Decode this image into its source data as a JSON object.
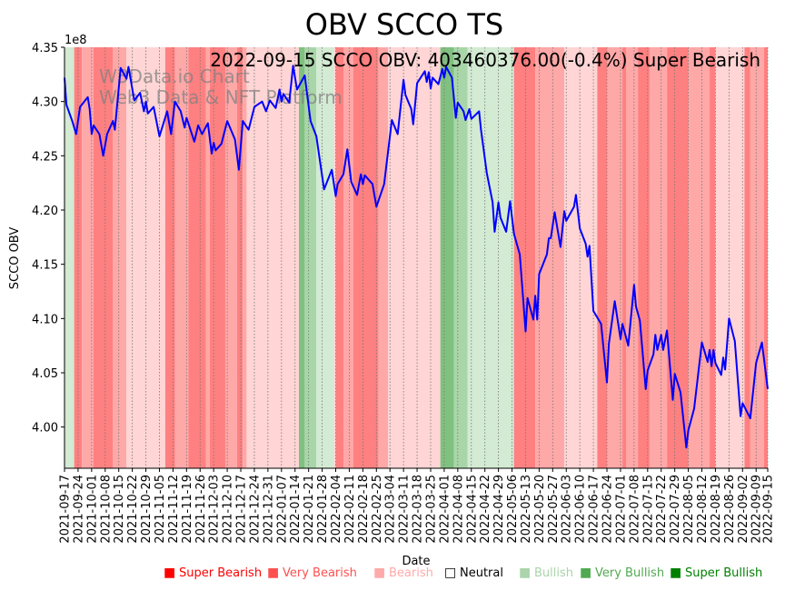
{
  "chart_data": {
    "type": "line",
    "title": "OBV SCCO TS",
    "annotation": "2022-09-15 SCCO OBV: 403460376.00(-0.4%) Super Bearish",
    "watermark": [
      "W3Data.io Chart",
      "Web3 Data & NFT Platform"
    ],
    "xlabel": "Date",
    "ylabel": "SCCO OBV",
    "y_offset_label": "1e8",
    "ylim": [
      3.962,
      4.35
    ],
    "xlim": [
      "2021-09-17",
      "2022-09-15"
    ],
    "yticks": [
      "4.00",
      "4.05",
      "4.10",
      "4.15",
      "4.20",
      "4.25",
      "4.30",
      "4.35"
    ],
    "xticks": [
      "2021-09-17",
      "2021-09-24",
      "2021-10-01",
      "2021-10-08",
      "2021-10-15",
      "2021-10-22",
      "2021-10-29",
      "2021-11-05",
      "2021-11-12",
      "2021-11-19",
      "2021-11-26",
      "2021-12-03",
      "2021-12-10",
      "2021-12-17",
      "2021-12-24",
      "2021-12-31",
      "2022-01-07",
      "2022-01-14",
      "2022-01-21",
      "2022-01-28",
      "2022-02-04",
      "2022-02-11",
      "2022-02-18",
      "2022-02-25",
      "2022-03-04",
      "2022-03-11",
      "2022-03-18",
      "2022-03-25",
      "2022-04-01",
      "2022-04-08",
      "2022-04-15",
      "2022-04-22",
      "2022-04-29",
      "2022-05-06",
      "2022-05-13",
      "2022-05-20",
      "2022-05-27",
      "2022-06-03",
      "2022-06-10",
      "2022-06-17",
      "2022-06-24",
      "2022-07-01",
      "2022-07-08",
      "2022-07-15",
      "2022-07-22",
      "2022-07-29",
      "2022-08-05",
      "2022-08-12",
      "2022-08-19",
      "2022-08-26",
      "2022-09-02",
      "2022-09-09",
      "2022-09-15"
    ],
    "grid": "vertical-dotted",
    "series": [
      {
        "name": "SCCO OBV",
        "color": "#0000ff",
        "points": [
          [
            "2021-09-17",
            4.322
          ],
          [
            "2021-09-18",
            4.297
          ],
          [
            "2021-09-21",
            4.282
          ],
          [
            "2021-09-23",
            4.27
          ],
          [
            "2021-09-25",
            4.295
          ],
          [
            "2021-09-29",
            4.304
          ],
          [
            "2021-09-30",
            4.293
          ],
          [
            "2021-10-01",
            4.27
          ],
          [
            "2021-10-02",
            4.278
          ],
          [
            "2021-10-05",
            4.27
          ],
          [
            "2021-10-07",
            4.25
          ],
          [
            "2021-10-09",
            4.27
          ],
          [
            "2021-10-12",
            4.282
          ],
          [
            "2021-10-13",
            4.274
          ],
          [
            "2021-10-16",
            4.331
          ],
          [
            "2021-10-19",
            4.321
          ],
          [
            "2021-10-20",
            4.332
          ],
          [
            "2021-10-23",
            4.301
          ],
          [
            "2021-10-26",
            4.308
          ],
          [
            "2021-10-28",
            4.291
          ],
          [
            "2021-10-29",
            4.3
          ],
          [
            "2021-10-30",
            4.289
          ],
          [
            "2021-11-02",
            4.295
          ],
          [
            "2021-11-05",
            4.268
          ],
          [
            "2021-11-09",
            4.291
          ],
          [
            "2021-11-11",
            4.27
          ],
          [
            "2021-11-13",
            4.3
          ],
          [
            "2021-11-16",
            4.291
          ],
          [
            "2021-11-18",
            4.276
          ],
          [
            "2021-11-19",
            4.285
          ],
          [
            "2021-11-23",
            4.263
          ],
          [
            "2021-11-25",
            4.278
          ],
          [
            "2021-11-27",
            4.27
          ],
          [
            "2021-11-30",
            4.28
          ],
          [
            "2021-12-02",
            4.252
          ],
          [
            "2021-12-03",
            4.262
          ],
          [
            "2021-12-04",
            4.255
          ],
          [
            "2021-12-07",
            4.261
          ],
          [
            "2021-12-10",
            4.282
          ],
          [
            "2021-12-14",
            4.265
          ],
          [
            "2021-12-16",
            4.237
          ],
          [
            "2021-12-18",
            4.282
          ],
          [
            "2021-12-21",
            4.274
          ],
          [
            "2021-12-24",
            4.295
          ],
          [
            "2021-12-28",
            4.3
          ],
          [
            "2021-12-30",
            4.291
          ],
          [
            "2022-01-01",
            4.301
          ],
          [
            "2022-01-04",
            4.294
          ],
          [
            "2022-01-06",
            4.311
          ],
          [
            "2022-01-07",
            4.3
          ],
          [
            "2022-01-08",
            4.307
          ],
          [
            "2022-01-11",
            4.299
          ],
          [
            "2022-01-13",
            4.333
          ],
          [
            "2022-01-15",
            4.311
          ],
          [
            "2022-01-19",
            4.324
          ],
          [
            "2022-01-22",
            4.282
          ],
          [
            "2022-01-25",
            4.268
          ],
          [
            "2022-01-29",
            4.219
          ],
          [
            "2022-02-02",
            4.237
          ],
          [
            "2022-02-04",
            4.213
          ],
          [
            "2022-02-05",
            4.224
          ],
          [
            "2022-02-08",
            4.233
          ],
          [
            "2022-02-10",
            4.256
          ],
          [
            "2022-02-12",
            4.226
          ],
          [
            "2022-02-15",
            4.214
          ],
          [
            "2022-02-17",
            4.233
          ],
          [
            "2022-02-18",
            4.224
          ],
          [
            "2022-02-19",
            4.232
          ],
          [
            "2022-02-23",
            4.224
          ],
          [
            "2022-02-25",
            4.203
          ],
          [
            "2022-03-01",
            4.224
          ],
          [
            "2022-03-05",
            4.283
          ],
          [
            "2022-03-08",
            4.27
          ],
          [
            "2022-03-11",
            4.32
          ],
          [
            "2022-03-12",
            4.306
          ],
          [
            "2022-03-15",
            4.293
          ],
          [
            "2022-03-16",
            4.279
          ],
          [
            "2022-03-18",
            4.317
          ],
          [
            "2022-03-22",
            4.328
          ],
          [
            "2022-03-23",
            4.318
          ],
          [
            "2022-03-24",
            4.327
          ],
          [
            "2022-03-25",
            4.312
          ],
          [
            "2022-03-26",
            4.322
          ],
          [
            "2022-03-29",
            4.316
          ],
          [
            "2022-03-31",
            4.33
          ],
          [
            "2022-04-01",
            4.322
          ],
          [
            "2022-04-02",
            4.332
          ],
          [
            "2022-04-05",
            4.322
          ],
          [
            "2022-04-07",
            4.285
          ],
          [
            "2022-04-08",
            4.299
          ],
          [
            "2022-04-11",
            4.291
          ],
          [
            "2022-04-12",
            4.283
          ],
          [
            "2022-04-14",
            4.293
          ],
          [
            "2022-04-15",
            4.284
          ],
          [
            "2022-04-19",
            4.291
          ],
          [
            "2022-04-20",
            4.274
          ],
          [
            "2022-04-23",
            4.234
          ],
          [
            "2022-04-26",
            4.207
          ],
          [
            "2022-04-27",
            4.18
          ],
          [
            "2022-04-29",
            4.207
          ],
          [
            "2022-04-30",
            4.193
          ],
          [
            "2022-05-03",
            4.18
          ],
          [
            "2022-05-05",
            4.208
          ],
          [
            "2022-05-07",
            4.178
          ],
          [
            "2022-05-10",
            4.159
          ],
          [
            "2022-05-13",
            4.088
          ],
          [
            "2022-05-14",
            4.119
          ],
          [
            "2022-05-17",
            4.099
          ],
          [
            "2022-05-18",
            4.121
          ],
          [
            "2022-05-19",
            4.099
          ],
          [
            "2022-05-20",
            4.141
          ],
          [
            "2022-05-24",
            4.159
          ],
          [
            "2022-05-25",
            4.174
          ],
          [
            "2022-05-26",
            4.174
          ],
          [
            "2022-05-28",
            4.198
          ],
          [
            "2022-05-31",
            4.166
          ],
          [
            "2022-06-02",
            4.199
          ],
          [
            "2022-06-03",
            4.19
          ],
          [
            "2022-06-07",
            4.203
          ],
          [
            "2022-06-08",
            4.214
          ],
          [
            "2022-06-10",
            4.183
          ],
          [
            "2022-06-13",
            4.169
          ],
          [
            "2022-06-14",
            4.157
          ],
          [
            "2022-06-15",
            4.167
          ],
          [
            "2022-06-17",
            4.107
          ],
          [
            "2022-06-21",
            4.095
          ],
          [
            "2022-06-24",
            4.041
          ],
          [
            "2022-06-25",
            4.077
          ],
          [
            "2022-06-28",
            4.116
          ],
          [
            "2022-07-01",
            4.081
          ],
          [
            "2022-07-02",
            4.095
          ],
          [
            "2022-07-05",
            4.075
          ],
          [
            "2022-07-08",
            4.131
          ],
          [
            "2022-07-09",
            4.111
          ],
          [
            "2022-07-11",
            4.098
          ],
          [
            "2022-07-14",
            4.035
          ],
          [
            "2022-07-15",
            4.052
          ],
          [
            "2022-07-18",
            4.067
          ],
          [
            "2022-07-19",
            4.085
          ],
          [
            "2022-07-20",
            4.071
          ],
          [
            "2022-07-22",
            4.085
          ],
          [
            "2022-07-23",
            4.071
          ],
          [
            "2022-07-25",
            4.089
          ],
          [
            "2022-07-28",
            4.025
          ],
          [
            "2022-07-29",
            4.049
          ],
          [
            "2022-08-01",
            4.032
          ],
          [
            "2022-08-04",
            3.981
          ],
          [
            "2022-08-05",
            3.997
          ],
          [
            "2022-08-08",
            4.017
          ],
          [
            "2022-08-12",
            4.078
          ],
          [
            "2022-08-15",
            4.06
          ],
          [
            "2022-08-16",
            4.071
          ],
          [
            "2022-08-17",
            4.056
          ],
          [
            "2022-08-18",
            4.071
          ],
          [
            "2022-08-19",
            4.059
          ],
          [
            "2022-08-22",
            4.048
          ],
          [
            "2022-08-23",
            4.064
          ],
          [
            "2022-08-24",
            4.053
          ],
          [
            "2022-08-26",
            4.1
          ],
          [
            "2022-08-29",
            4.079
          ],
          [
            "2022-09-01",
            4.01
          ],
          [
            "2022-09-02",
            4.022
          ],
          [
            "2022-09-06",
            4.008
          ],
          [
            "2022-09-09",
            4.059
          ],
          [
            "2022-09-12",
            4.078
          ],
          [
            "2022-09-15",
            4.035
          ]
        ]
      }
    ],
    "bands": [
      [
        "2021-09-17",
        "2021-09-22",
        "bullish"
      ],
      [
        "2021-09-22",
        "2021-09-26",
        "super_bearish"
      ],
      [
        "2021-09-26",
        "2021-10-02",
        "very_bearish"
      ],
      [
        "2021-10-02",
        "2021-10-12",
        "super_bearish"
      ],
      [
        "2021-10-12",
        "2021-10-19",
        "very_bearish"
      ],
      [
        "2021-10-19",
        "2021-11-08",
        "bearish"
      ],
      [
        "2021-11-08",
        "2021-11-13",
        "super_bearish"
      ],
      [
        "2021-11-13",
        "2021-11-20",
        "very_bearish"
      ],
      [
        "2021-11-20",
        "2021-11-29",
        "super_bearish"
      ],
      [
        "2021-11-29",
        "2021-12-01",
        "very_bearish"
      ],
      [
        "2021-12-01",
        "2021-12-09",
        "super_bearish"
      ],
      [
        "2021-12-09",
        "2021-12-15",
        "very_bearish"
      ],
      [
        "2021-12-15",
        "2021-12-18",
        "super_bearish"
      ],
      [
        "2021-12-18",
        "2021-12-20",
        "very_bearish"
      ],
      [
        "2021-12-20",
        "2022-01-16",
        "bearish"
      ],
      [
        "2022-01-16",
        "2022-01-19",
        "super_bullish"
      ],
      [
        "2022-01-19",
        "2022-01-25",
        "very_bullish"
      ],
      [
        "2022-01-25",
        "2022-02-03",
        "bullish"
      ],
      [
        "2022-02-03",
        "2022-02-04",
        "bearish"
      ],
      [
        "2022-02-04",
        "2022-02-08",
        "super_bearish"
      ],
      [
        "2022-02-08",
        "2022-02-13",
        "very_bearish"
      ],
      [
        "2022-02-13",
        "2022-02-26",
        "super_bearish"
      ],
      [
        "2022-02-26",
        "2022-03-03",
        "very_bearish"
      ],
      [
        "2022-03-03",
        "2022-03-30",
        "bearish"
      ],
      [
        "2022-03-30",
        "2022-04-06",
        "super_bullish"
      ],
      [
        "2022-04-06",
        "2022-04-13",
        "very_bullish"
      ],
      [
        "2022-04-13",
        "2022-05-07",
        "bullish"
      ],
      [
        "2022-05-07",
        "2022-05-18",
        "super_bearish"
      ],
      [
        "2022-05-18",
        "2022-06-02",
        "very_bearish"
      ],
      [
        "2022-06-02",
        "2022-06-19",
        "bearish"
      ],
      [
        "2022-06-19",
        "2022-06-24",
        "super_bearish"
      ],
      [
        "2022-06-24",
        "2022-07-02",
        "very_bearish"
      ],
      [
        "2022-07-02",
        "2022-07-04",
        "super_bearish"
      ],
      [
        "2022-07-04",
        "2022-07-10",
        "very_bearish"
      ],
      [
        "2022-07-10",
        "2022-07-16",
        "super_bearish"
      ],
      [
        "2022-07-16",
        "2022-07-25",
        "very_bearish"
      ],
      [
        "2022-07-25",
        "2022-08-05",
        "super_bearish"
      ],
      [
        "2022-08-05",
        "2022-08-16",
        "very_bearish"
      ],
      [
        "2022-08-16",
        "2022-08-19",
        "super_bearish"
      ],
      [
        "2022-08-19",
        "2022-09-03",
        "bearish"
      ],
      [
        "2022-09-03",
        "2022-09-06",
        "super_bearish"
      ],
      [
        "2022-09-06",
        "2022-09-13",
        "very_bearish"
      ],
      [
        "2022-09-13",
        "2022-09-15",
        "super_bearish"
      ]
    ],
    "band_colors": {
      "super_bearish": "#ff8080",
      "very_bearish": "#ffa8a8",
      "bearish": "#ffd5d5",
      "bullish": "#d3ead3",
      "very_bullish": "#a9d6a9",
      "super_bullish": "#80c080"
    },
    "legend": {
      "placement": "bottom-center",
      "items": [
        {
          "label": "Super Bearish",
          "color": "#ff0000",
          "marker": "■"
        },
        {
          "label": "Very Bearish",
          "color": "#ff5050",
          "marker": "■"
        },
        {
          "label": "Bearish",
          "color": "#ffaaaa",
          "marker": "■"
        },
        {
          "label": "Neutral",
          "color": "#000000",
          "marker": "□"
        },
        {
          "label": "Bullish",
          "color": "#aad4aa",
          "marker": "■"
        },
        {
          "label": "Very Bullish",
          "color": "#50aa50",
          "marker": "■"
        },
        {
          "label": "Super Bullish",
          "color": "#008000",
          "marker": "■"
        }
      ]
    }
  }
}
